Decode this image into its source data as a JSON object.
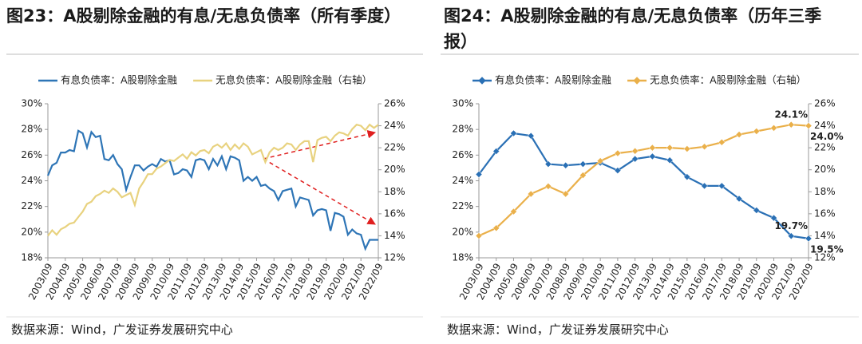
{
  "chart_data": [
    {
      "type": "line",
      "title": "图23：A股剔除金融的有息/无息负债率（所有季度）",
      "source": "数据来源：Wind，广发证券发展研究中心",
      "categories": [
        "2003/09",
        null,
        null,
        null,
        "2004/09",
        null,
        null,
        null,
        "2005/09",
        null,
        null,
        null,
        "2006/09",
        null,
        null,
        null,
        "2007/09",
        null,
        null,
        null,
        "2008/09",
        null,
        null,
        null,
        "2009/09",
        null,
        null,
        null,
        "2010/09",
        null,
        null,
        null,
        "2011/09",
        null,
        null,
        null,
        "2012/09",
        null,
        null,
        null,
        "2013/09",
        null,
        null,
        null,
        "2014/09",
        null,
        null,
        null,
        "2015/09",
        null,
        null,
        null,
        "2016/09",
        null,
        null,
        null,
        "2017/09",
        null,
        null,
        null,
        "2018/09",
        null,
        null,
        null,
        "2019/09",
        null,
        null,
        null,
        "2020/09",
        null,
        null,
        null,
        "2021/09",
        null,
        null,
        null,
        "2022/09"
      ],
      "series": [
        {
          "name": "有息负债率：A股剔除金融",
          "color": "#2e75b6",
          "axis": "y",
          "values": [
            24.4,
            25.2,
            25.4,
            26.2,
            26.2,
            26.4,
            26.3,
            27.9,
            27.7,
            26.6,
            27.8,
            27.4,
            27.5,
            25.7,
            25.6,
            26.0,
            25.3,
            24.9,
            23.3,
            24.3,
            25.2,
            25.2,
            24.8,
            25.1,
            25.3,
            25.1,
            25.7,
            25.5,
            25.6,
            24.5,
            24.6,
            24.9,
            24.8,
            24.3,
            25.6,
            25.7,
            25.6,
            24.9,
            25.7,
            25.2,
            25.9,
            24.9,
            25.9,
            25.8,
            25.6,
            24.0,
            24.3,
            24.0,
            24.3,
            23.6,
            23.7,
            23.4,
            23.2,
            22.5,
            23.2,
            23.3,
            23.4,
            22.0,
            22.7,
            22.6,
            22.5,
            21.3,
            21.7,
            21.8,
            21.7,
            20.1,
            21.5,
            21.4,
            21.2,
            19.8,
            20.2,
            19.9,
            19.8,
            18.7,
            19.4,
            19.4,
            19.4
          ]
        },
        {
          "name": "无息负债率：A股剔除金融（右轴）",
          "color": "#e8d27f",
          "axis": "y2",
          "values": [
            14.0,
            14.5,
            14.1,
            14.6,
            14.8,
            15.1,
            15.2,
            15.7,
            16.2,
            16.9,
            17.1,
            17.6,
            17.8,
            18.1,
            17.9,
            18.3,
            18.0,
            17.5,
            17.7,
            17.9,
            16.8,
            18.3,
            18.9,
            19.6,
            19.6,
            20.1,
            20.3,
            20.6,
            20.9,
            20.8,
            21.1,
            21.4,
            21.0,
            21.6,
            21.3,
            21.7,
            21.8,
            21.5,
            22.1,
            22.3,
            22.0,
            22.4,
            21.8,
            22.3,
            21.9,
            22.4,
            22.1,
            21.4,
            21.6,
            21.8,
            20.7,
            21.6,
            22.0,
            21.8,
            22.0,
            22.4,
            22.3,
            21.8,
            22.3,
            22.6,
            22.6,
            20.7,
            22.7,
            22.9,
            23.0,
            22.6,
            23.1,
            23.4,
            23.3,
            23.1,
            23.7,
            24.1,
            24.0,
            23.6,
            24.1,
            23.8,
            24.1
          ]
        }
      ],
      "ylim": [
        18,
        30
      ],
      "yticks": [
        {
          "value": 18,
          "label": "18%"
        },
        {
          "value": 20,
          "label": "20%"
        },
        {
          "value": 22,
          "label": "22%"
        },
        {
          "value": 24,
          "label": "24%"
        },
        {
          "value": 26,
          "label": "26%"
        },
        {
          "value": 28,
          "label": "28%"
        },
        {
          "value": 30,
          "label": "30%"
        }
      ],
      "y2lim": [
        12,
        26
      ],
      "y2ticks": [
        {
          "value": 12,
          "label": "12%"
        },
        {
          "value": 14,
          "label": "14%"
        },
        {
          "value": 16,
          "label": "16%"
        },
        {
          "value": 18,
          "label": "18%"
        },
        {
          "value": 20,
          "label": "20%"
        },
        {
          "value": 22,
          "label": "22%"
        },
        {
          "value": 24,
          "label": "24%"
        },
        {
          "value": 26,
          "label": "26%"
        }
      ],
      "markers": false
    },
    {
      "type": "line",
      "title": "图24：A股剔除金融的有息/无息负债率（历年三季报）",
      "source": "数据来源：Wind，广发证券发展研究中心",
      "categories": [
        "2003/09",
        "2004/09",
        "2005/09",
        "2006/09",
        "2007/09",
        "2008/09",
        "2009/09",
        "2010/09",
        "2011/09",
        "2012/09",
        "2013/09",
        "2014/09",
        "2015/09",
        "2016/09",
        "2017/09",
        "2018/09",
        "2019/09",
        "2020/09",
        "2021/09",
        "2022/09"
      ],
      "series": [
        {
          "name": "有息负债率：A股剔除金融",
          "color": "#2a70b5",
          "axis": "y",
          "value_label_color": "#2e8bd0",
          "values": [
            24.5,
            26.3,
            27.7,
            27.5,
            25.3,
            25.2,
            25.3,
            25.4,
            24.8,
            25.7,
            25.9,
            25.6,
            24.3,
            23.6,
            23.6,
            22.6,
            21.7,
            21.1,
            19.7,
            19.5
          ],
          "value_labels": [
            null,
            null,
            null,
            null,
            null,
            null,
            null,
            null,
            null,
            null,
            null,
            null,
            null,
            null,
            null,
            null,
            null,
            null,
            "19.7%",
            "19.5%"
          ]
        },
        {
          "name": "无息负债率：A股剔除金融（右轴）",
          "color": "#eab04a",
          "axis": "y2",
          "value_label_color": "#e03a3a",
          "values": [
            14.0,
            14.7,
            16.2,
            17.8,
            18.5,
            17.8,
            19.5,
            20.8,
            21.5,
            21.7,
            22.0,
            22.0,
            21.9,
            22.1,
            22.5,
            23.2,
            23.5,
            23.8,
            24.1,
            24.0
          ],
          "value_labels": [
            null,
            null,
            null,
            null,
            null,
            null,
            null,
            null,
            null,
            null,
            null,
            null,
            null,
            null,
            null,
            null,
            null,
            null,
            "24.1%",
            "24.0%"
          ]
        }
      ],
      "ylim": [
        18,
        30
      ],
      "yticks": [
        {
          "value": 18,
          "label": "18%"
        },
        {
          "value": 20,
          "label": "20%"
        },
        {
          "value": 22,
          "label": "22%"
        },
        {
          "value": 24,
          "label": "24%"
        },
        {
          "value": 26,
          "label": "26%"
        },
        {
          "value": 28,
          "label": "28%"
        },
        {
          "value": 30,
          "label": "30%"
        }
      ],
      "y2lim": [
        12,
        26
      ],
      "y2ticks": [
        {
          "value": 12,
          "label": "12%"
        },
        {
          "value": 14,
          "label": "14%"
        },
        {
          "value": 16,
          "label": "16%"
        },
        {
          "value": 18,
          "label": "18%"
        },
        {
          "value": 20,
          "label": "20%"
        },
        {
          "value": 22,
          "label": "22%"
        },
        {
          "value": 24,
          "label": "24%"
        },
        {
          "value": 26,
          "label": "26%"
        }
      ],
      "markers": true
    }
  ]
}
